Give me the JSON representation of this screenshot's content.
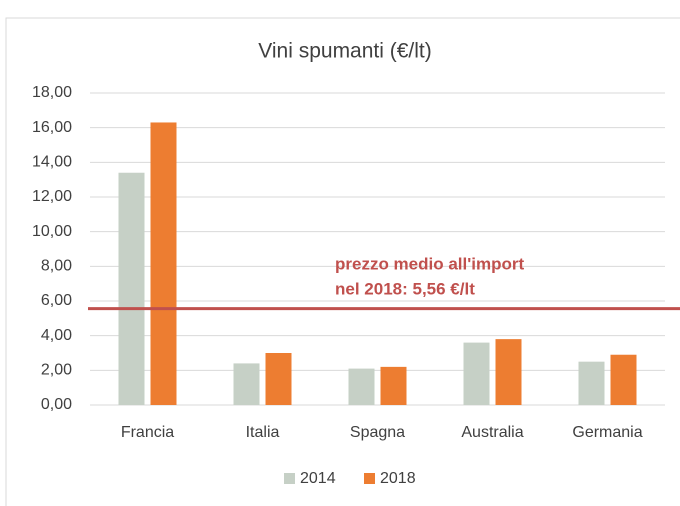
{
  "chart_data": {
    "type": "bar",
    "title": "Vini spumanti (€/lt)",
    "categories": [
      "Francia",
      "Italia",
      "Spagna",
      "Australia",
      "Germania"
    ],
    "series": [
      {
        "name": "2014",
        "color": "#c6d0c6",
        "values": [
          13.4,
          2.4,
          2.1,
          3.6,
          2.5
        ]
      },
      {
        "name": "2018",
        "color": "#ed7d31",
        "values": [
          16.3,
          3.0,
          2.2,
          3.8,
          2.9
        ]
      }
    ],
    "ylim": [
      0,
      18
    ],
    "yticks": [
      {
        "value": 0,
        "label": "0,00"
      },
      {
        "value": 2,
        "label": "2,00"
      },
      {
        "value": 4,
        "label": "4,00"
      },
      {
        "value": 6,
        "label": "6,00"
      },
      {
        "value": 8,
        "label": "8,00"
      },
      {
        "value": 10,
        "label": "10,00"
      },
      {
        "value": 12,
        "label": "12,00"
      },
      {
        "value": 14,
        "label": "14,00"
      },
      {
        "value": 16,
        "label": "16,00"
      },
      {
        "value": 18,
        "label": "18,00"
      }
    ],
    "grid": true,
    "reference_line": {
      "value": 5.56,
      "color": "#c0504d"
    },
    "annotation": [
      "prezzo medio all'import",
      "nel 2018: 5,56 €/lt"
    ],
    "legend": "bottom"
  }
}
